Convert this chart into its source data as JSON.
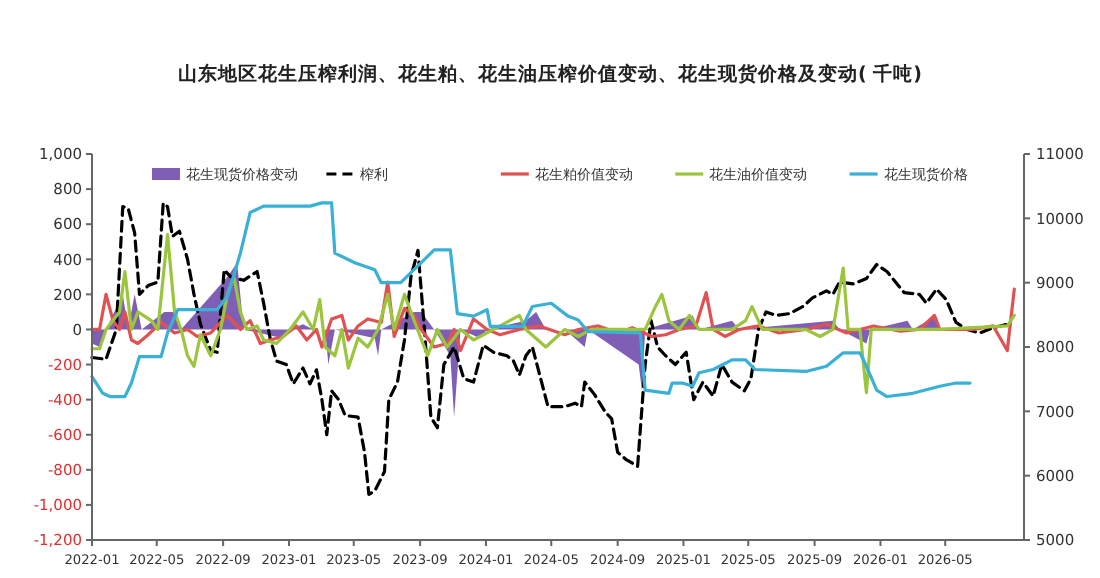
{
  "chart_data": {
    "type": "line",
    "title": "山东地区花生压榨利润、花生粕、花生油压榨价值变动、花生现货价格及变动(  千吨)",
    "xlim": [
      "2022-01-01",
      "2026-09-24"
    ],
    "xticks": [
      "2022-01",
      "2022-05",
      "2022-09",
      "2023-01",
      "2023-05",
      "2023-09",
      "2024-01",
      "2024-05",
      "2024-09",
      "2025-01",
      "2025-05",
      "2025-09",
      "2026-01",
      "2026-05"
    ],
    "ylim": [
      -1200,
      1000
    ],
    "yticks": [
      {
        "value": -1200,
        "label": "-1,200"
      },
      {
        "value": -1000,
        "label": "-1,000"
      },
      -800,
      -600,
      -400,
      -200,
      0,
      200,
      400,
      600,
      800,
      {
        "value": 1000,
        "label": "1,000"
      }
    ],
    "y2lim": [
      5000,
      11000
    ],
    "y2ticks": [
      5000,
      6000,
      7000,
      8000,
      9000,
      10000,
      11000
    ],
    "legend": "top",
    "grid": false,
    "series": [
      {
        "name": "花生现货价格变动",
        "type": "area",
        "color": "#7f5fb5",
        "x": [
          "2022-01-01",
          "2022-01-15",
          "2022-01-27",
          "2022-02-27",
          "2022-03-09",
          "2022-03-21",
          "2022-04-03",
          "2022-05-15",
          "2022-06-03",
          "2022-06-15",
          "2022-09-09",
          "2022-09-27",
          "2022-10-09",
          "2022-12-21",
          "2023-01-03",
          "2023-01-27",
          "2023-02-15",
          "2023-03-09",
          "2023-03-15",
          "2023-03-27",
          "2023-06-09",
          "2023-06-15",
          "2023-06-21",
          "2023-08-21",
          "2023-09-03",
          "2023-09-27",
          "2023-10-27",
          "2023-11-03",
          "2023-11-15",
          "2023-12-21",
          "2024-01-03",
          "2024-03-15",
          "2024-04-03",
          "2024-04-21",
          "2024-05-26",
          "2024-07-02",
          "2024-07-08",
          "2024-10-10",
          "2024-10-16",
          "2024-10-22",
          "2025-01-18",
          "2025-01-30",
          "2025-04-01",
          "2025-04-14",
          "2025-10-05",
          "2025-10-17",
          "2025-12-06",
          "2025-12-13",
          "2026-02-20",
          "2026-03-02",
          "2026-04-09",
          "2026-04-21",
          "2026-08-24"
        ],
        "values": [
          -80,
          -100,
          0,
          200,
          0,
          200,
          0,
          100,
          100,
          0,
          300,
          380,
          0,
          -50,
          0,
          30,
          0,
          0,
          -200,
          0,
          -50,
          -150,
          0,
          100,
          100,
          0,
          -150,
          -500,
          0,
          -50,
          0,
          50,
          100,
          0,
          0,
          -100,
          0,
          -200,
          -350,
          0,
          80,
          0,
          50,
          0,
          50,
          0,
          -80,
          0,
          50,
          0,
          70,
          0,
          0
        ]
      },
      {
        "name": "榨利",
        "line_style": "dashed",
        "color": "#000000",
        "x": [
          "2022-01-01",
          "2022-01-27",
          "2022-02-15",
          "2022-02-27",
          "2022-03-09",
          "2022-03-21",
          "2022-03-30",
          "2022-04-15",
          "2022-05-03",
          "2022-05-13",
          "2022-05-21",
          "2022-05-30",
          "2022-06-12",
          "2022-06-27",
          "2022-07-09",
          "2022-07-21",
          "2022-08-09",
          "2022-08-21",
          "2022-09-03",
          "2022-09-15",
          "2022-10-09",
          "2022-11-03",
          "2022-11-15",
          "2022-11-27",
          "2022-12-09",
          "2022-12-27",
          "2023-01-09",
          "2023-01-27",
          "2023-02-09",
          "2023-02-21",
          "2023-03-03",
          "2023-03-12",
          "2023-03-21",
          "2023-04-03",
          "2023-04-15",
          "2023-05-09",
          "2023-05-21",
          "2023-05-29",
          "2023-06-09",
          "2023-06-27",
          "2023-07-05",
          "2023-07-21",
          "2023-08-03",
          "2023-08-15",
          "2023-08-28",
          "2023-09-09",
          "2023-09-21",
          "2023-10-03",
          "2023-10-15",
          "2023-11-03",
          "2023-11-21",
          "2023-12-09",
          "2023-12-27",
          "2024-01-15",
          "2024-02-09",
          "2024-02-21",
          "2024-03-03",
          "2024-03-15",
          "2024-03-27",
          "2024-04-25",
          "2024-05-26",
          "2024-06-14",
          "2024-06-26",
          "2024-07-02",
          "2024-07-20",
          "2024-08-09",
          "2024-08-21",
          "2024-09-01",
          "2024-09-16",
          "2024-10-08",
          "2024-10-22",
          "2024-11-02",
          "2024-11-14",
          "2024-11-29",
          "2024-12-17",
          "2025-01-06",
          "2025-01-20",
          "2025-02-06",
          "2025-02-25",
          "2025-03-13",
          "2025-04-01",
          "2025-04-24",
          "2025-05-06",
          "2025-05-20",
          "2025-06-03",
          "2025-06-21",
          "2025-07-16",
          "2025-08-10",
          "2025-08-28",
          "2025-09-23",
          "2025-10-05",
          "2025-10-17",
          "2025-11-12",
          "2025-12-06",
          "2025-12-25",
          "2026-01-13",
          "2026-02-14",
          "2026-03-14",
          "2026-03-27",
          "2026-04-15",
          "2026-05-03",
          "2026-05-21",
          "2026-06-10",
          "2026-07-04",
          "2026-07-29",
          "2026-08-24"
        ],
        "values": [
          -160,
          -170,
          0,
          700,
          690,
          550,
          200,
          250,
          270,
          720,
          700,
          530,
          560,
          400,
          200,
          30,
          -120,
          -130,
          340,
          300,
          280,
          330,
          150,
          -50,
          -180,
          -200,
          -310,
          -220,
          -310,
          -230,
          -400,
          -600,
          -350,
          -400,
          -490,
          -500,
          -700,
          -940,
          -920,
          -810,
          -400,
          -300,
          -60,
          300,
          450,
          0,
          -500,
          -560,
          -200,
          -100,
          -280,
          -300,
          -90,
          -130,
          -150,
          -180,
          -260,
          -150,
          -100,
          -440,
          -440,
          -420,
          -440,
          -300,
          -370,
          -470,
          -510,
          -700,
          -740,
          -780,
          -200,
          50,
          -100,
          -150,
          -200,
          -130,
          -400,
          -300,
          -380,
          -200,
          -300,
          -350,
          -280,
          0,
          100,
          80,
          90,
          130,
          180,
          220,
          200,
          270,
          260,
          290,
          370,
          330,
          210,
          200,
          150,
          230,
          170,
          40,
          0,
          -20,
          10,
          30
        ]
      },
      {
        "name": "花生粕价值变动",
        "color": "#e05252",
        "x": [
          "2022-01-01",
          "2022-01-15",
          "2022-01-27",
          "2022-02-09",
          "2022-02-21",
          "2022-03-03",
          "2022-03-15",
          "2022-03-27",
          "2022-04-15",
          "2022-05-09",
          "2022-06-03",
          "2022-06-27",
          "2022-07-15",
          "2022-08-09",
          "2022-09-09",
          "2022-10-03",
          "2022-10-21",
          "2022-11-09",
          "2022-11-27",
          "2022-12-21",
          "2023-01-15",
          "2023-02-03",
          "2023-02-21",
          "2023-03-03",
          "2023-03-21",
          "2023-04-09",
          "2023-04-21",
          "2023-05-09",
          "2023-05-27",
          "2023-06-21",
          "2023-07-03",
          "2023-07-15",
          "2023-08-03",
          "2023-08-21",
          "2023-09-03",
          "2023-09-27",
          "2023-10-21",
          "2023-11-03",
          "2023-11-15",
          "2023-12-09",
          "2024-01-03",
          "2024-01-27",
          "2024-03-03",
          "2024-04-09",
          "2024-05-26",
          "2024-06-20",
          "2024-07-27",
          "2024-09-03",
          "2024-09-28",
          "2024-11-04",
          "2024-11-29",
          "2024-12-24",
          "2025-01-24",
          "2025-02-12",
          "2025-02-25",
          "2025-03-19",
          "2025-04-14",
          "2025-05-20",
          "2025-06-27",
          "2025-08-16",
          "2025-09-23",
          "2025-10-30",
          "2025-12-19",
          "2026-02-07",
          "2026-03-14",
          "2026-04-11",
          "2026-04-21",
          "2026-06-22",
          "2026-07-29",
          "2026-08-24",
          "2026-09-06"
        ],
        "values": [
          0,
          0,
          200,
          50,
          0,
          100,
          -60,
          -80,
          -30,
          40,
          -20,
          0,
          -40,
          -20,
          80,
          0,
          50,
          -80,
          -60,
          -40,
          20,
          -60,
          0,
          -100,
          60,
          80,
          -60,
          20,
          60,
          40,
          270,
          -40,
          120,
          80,
          0,
          -100,
          -80,
          0,
          -120,
          60,
          0,
          -30,
          0,
          20,
          -30,
          0,
          20,
          -20,
          10,
          -40,
          -30,
          0,
          20,
          210,
          0,
          -40,
          0,
          20,
          -20,
          0,
          30,
          -20,
          20,
          -10,
          0,
          80,
          0,
          0,
          20,
          -120,
          230
        ]
      },
      {
        "name": "花生油价值变动",
        "color": "#9bc53d",
        "x": [
          "2022-01-01",
          "2022-01-15",
          "2022-01-27",
          "2022-02-21",
          "2022-03-03",
          "2022-03-15",
          "2022-03-27",
          "2022-04-21",
          "2022-05-03",
          "2022-05-21",
          "2022-06-03",
          "2022-06-15",
          "2022-06-27",
          "2022-07-09",
          "2022-07-21",
          "2022-08-09",
          "2022-08-27",
          "2022-09-09",
          "2022-09-21",
          "2022-10-03",
          "2022-10-15",
          "2022-11-03",
          "2022-11-15",
          "2022-12-09",
          "2023-01-03",
          "2023-01-27",
          "2023-02-15",
          "2023-02-27",
          "2023-03-09",
          "2023-03-27",
          "2023-04-09",
          "2023-04-21",
          "2023-05-09",
          "2023-05-27",
          "2023-06-15",
          "2023-07-03",
          "2023-07-15",
          "2023-08-03",
          "2023-08-21",
          "2023-09-15",
          "2023-10-03",
          "2023-10-21",
          "2023-11-15",
          "2023-12-09",
          "2024-01-15",
          "2024-03-03",
          "2024-03-15",
          "2024-04-21",
          "2024-05-26",
          "2024-06-20",
          "2024-07-14",
          "2024-10-22",
          "2024-11-10",
          "2024-11-22",
          "2024-12-05",
          "2024-12-24",
          "2025-01-12",
          "2025-01-30",
          "2025-04-01",
          "2025-04-26",
          "2025-05-08",
          "2025-05-27",
          "2025-08-16",
          "2025-09-11",
          "2025-10-05",
          "2025-10-24",
          "2025-11-02",
          "2025-11-24",
          "2025-12-06",
          "2025-12-15",
          "2026-04-21",
          "2026-08-24",
          "2026-09-06"
        ],
        "values": [
          -110,
          -110,
          0,
          100,
          330,
          0,
          100,
          50,
          0,
          540,
          100,
          0,
          -150,
          -210,
          -30,
          -150,
          0,
          200,
          300,
          100,
          0,
          20,
          -60,
          -80,
          0,
          100,
          0,
          170,
          -100,
          -150,
          0,
          -220,
          -50,
          -100,
          0,
          200,
          0,
          200,
          50,
          -150,
          0,
          -100,
          0,
          -60,
          0,
          80,
          0,
          -100,
          0,
          -40,
          0,
          0,
          130,
          200,
          50,
          0,
          80,
          0,
          0,
          50,
          130,
          0,
          0,
          -40,
          0,
          350,
          0,
          0,
          -360,
          0,
          0,
          20,
          80
        ]
      },
      {
        "name": "花生现货价格",
        "axis": "y2",
        "color": "#3ab0d6",
        "x": [
          "2022-01-01",
          "2022-01-21",
          "2022-02-03",
          "2022-03-03",
          "2022-03-15",
          "2022-03-30",
          "2022-05-09",
          "2022-05-21",
          "2022-06-09",
          "2022-08-21",
          "2022-09-09",
          "2022-10-03",
          "2022-10-21",
          "2022-11-15",
          "2023-02-09",
          "2023-03-03",
          "2023-03-21",
          "2023-03-27",
          "2023-05-03",
          "2023-06-09",
          "2023-06-21",
          "2023-07-27",
          "2023-09-03",
          "2023-09-27",
          "2023-10-27",
          "2023-11-09",
          "2023-12-09",
          "2024-01-03",
          "2024-01-09",
          "2024-03-09",
          "2024-03-27",
          "2024-05-01",
          "2024-06-01",
          "2024-06-20",
          "2024-07-08",
          "2024-10-13",
          "2024-10-22",
          "2024-12-05",
          "2024-12-11",
          "2024-12-30",
          "2025-01-18",
          "2025-01-30",
          "2025-02-25",
          "2025-04-01",
          "2025-04-26",
          "2025-05-14",
          "2025-08-16",
          "2025-09-23",
          "2025-10-24",
          "2025-11-24",
          "2025-12-06",
          "2025-12-25",
          "2026-01-13",
          "2026-03-02",
          "2026-04-21",
          "2026-05-21",
          "2026-06-16"
        ],
        "values": [
          7540,
          7280,
          7230,
          7230,
          7440,
          7850,
          7850,
          8220,
          8580,
          8580,
          8790,
          9460,
          10090,
          10190,
          10190,
          10240,
          10240,
          9460,
          9310,
          9200,
          9000,
          9000,
          9310,
          9510,
          9510,
          8520,
          8480,
          8580,
          8320,
          8320,
          8630,
          8680,
          8480,
          8420,
          8240,
          8220,
          7330,
          7280,
          7440,
          7440,
          7390,
          7600,
          7650,
          7800,
          7800,
          7650,
          7620,
          7700,
          7910,
          7910,
          7700,
          7330,
          7230,
          7280,
          7390,
          7440,
          7440
        ]
      }
    ]
  }
}
